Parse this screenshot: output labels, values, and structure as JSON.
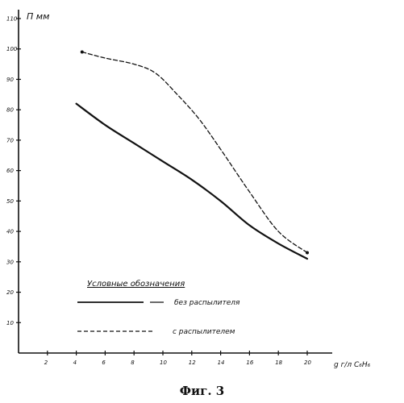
{
  "chart_data": {
    "type": "line",
    "ylabel": "П мм",
    "xlabel": "g г/л C₆H₆",
    "xlim": [
      0,
      21
    ],
    "ylim": [
      0,
      110
    ],
    "x_ticks": [
      2,
      4,
      6,
      8,
      10,
      12,
      14,
      16,
      18,
      20
    ],
    "y_ticks": [
      10,
      20,
      30,
      40,
      50,
      60,
      70,
      80,
      90,
      100,
      110
    ],
    "legend_title": "Условные обозначения",
    "series": [
      {
        "name": "без распылителя",
        "style": "solid",
        "x": [
          4,
          6,
          8,
          10,
          12,
          14,
          16,
          18,
          20
        ],
        "y": [
          82,
          75,
          69,
          63,
          57,
          50,
          42,
          36,
          31
        ]
      },
      {
        "name": "с распылителем",
        "style": "dashed",
        "x": [
          4.4,
          6,
          8,
          9.5,
          11,
          12.5,
          14,
          16,
          18,
          20
        ],
        "y": [
          99,
          97,
          95,
          92,
          85,
          77,
          67,
          53,
          40,
          33
        ]
      }
    ]
  },
  "caption": "Фиг. 3"
}
